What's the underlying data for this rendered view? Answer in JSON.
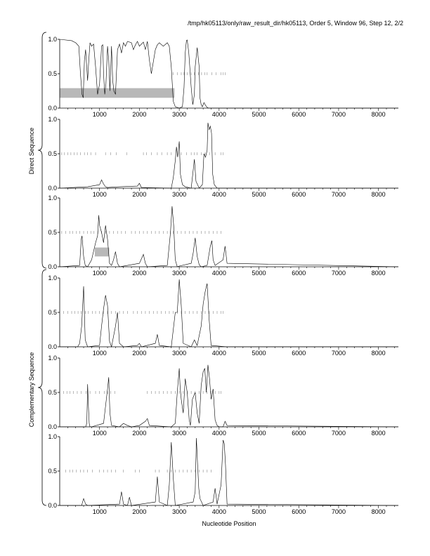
{
  "header": {
    "path_text": "/tmp/hk05113/only/raw_result_dir/hk05113, Order 5, Window 96, Step 12, 2/2"
  },
  "labels": {
    "xlabel": "Nucleotide Position",
    "direct_group": "Direct Sequence",
    "complementary_group": "Complementary Sequence"
  },
  "chart_data": [
    {
      "type": "line",
      "frame": 1,
      "group": "Direct Sequence",
      "xlim": [
        0,
        8500
      ],
      "ylim": [
        0,
        1
      ],
      "x_ticks": [
        1000,
        2000,
        3000,
        4000,
        5000,
        6000,
        7000,
        8000
      ],
      "y_ticks": [
        "0.0",
        "0.5",
        "1.0"
      ],
      "series": [
        {
          "x": [
            0,
            300,
            400,
            480,
            520,
            560,
            590,
            620,
            650,
            700,
            730,
            760,
            800,
            850,
            900,
            950,
            1000,
            1050,
            1080,
            1100,
            1130,
            1160,
            1200,
            1230,
            1260,
            1300,
            1330,
            1360,
            1400,
            1450,
            1500,
            1550,
            1600,
            1650,
            1700,
            1800,
            1850,
            1900,
            1950,
            2000,
            2050,
            2100,
            2150,
            2200,
            2250,
            2300,
            2400,
            2450,
            2500,
            2600,
            2700,
            2750,
            2800,
            2850,
            2900,
            3000,
            3080,
            3120,
            3150,
            3180,
            3200,
            3240,
            3300,
            3340,
            3380,
            3400,
            3450,
            3500,
            3520,
            3550,
            3580,
            3620,
            3660,
            3700,
            3740,
            3780,
            3900,
            4200,
            8500
          ],
          "y": [
            1.0,
            0.98,
            0.95,
            0.9,
            0.5,
            0.2,
            0.15,
            0.7,
            0.85,
            0.4,
            0.7,
            0.95,
            0.9,
            0.93,
            0.6,
            0.2,
            0.35,
            0.9,
            0.92,
            0.5,
            0.2,
            0.35,
            0.9,
            0.7,
            0.25,
            0.9,
            0.4,
            0.25,
            0.2,
            0.85,
            0.93,
            0.8,
            0.95,
            0.9,
            0.97,
            0.95,
            0.85,
            0.92,
            0.97,
            0.9,
            0.93,
            0.96,
            0.85,
            0.97,
            0.7,
            0.5,
            0.85,
            0.92,
            0.95,
            0.9,
            0.95,
            0.9,
            0.6,
            0.1,
            0.02,
            0.0,
            0.02,
            0.3,
            0.8,
            0.98,
            0.99,
            0.8,
            0.3,
            0.05,
            0.2,
            0.6,
            0.88,
            0.6,
            0.15,
            0.05,
            0.02,
            0.08,
            0.04,
            0.01,
            0.0,
            0.0,
            0.0,
            0.0,
            0.0
          ]
        }
      ],
      "hits": [
        2850,
        2950,
        3050,
        3120,
        3200,
        3300,
        3380,
        3480,
        3560,
        3640,
        3700,
        3820,
        3920,
        4050,
        4100,
        4150
      ],
      "highlight": {
        "x_range": [
          0,
          2880
        ],
        "y_range": [
          0.15,
          0.29
        ]
      }
    },
    {
      "type": "line",
      "frame": 2,
      "group": "Direct Sequence",
      "xlim": [
        0,
        8500
      ],
      "ylim": [
        0,
        1
      ],
      "x_ticks": [
        1000,
        2000,
        3000,
        4000,
        5000,
        6000,
        7000,
        8000
      ],
      "y_ticks": [
        "0.0",
        "0.5",
        "1.0"
      ],
      "series": [
        {
          "x": [
            0,
            700,
            1000,
            1050,
            1100,
            1150,
            1200,
            1500,
            1950,
            2000,
            2050,
            2800,
            2850,
            2900,
            2930,
            2960,
            3000,
            3030,
            3080,
            3150,
            3300,
            3380,
            3420,
            3500,
            3580,
            3620,
            3660,
            3700,
            3720,
            3750,
            3780,
            3810,
            3840,
            3880,
            3950,
            8500
          ],
          "y": [
            0.0,
            0.02,
            0.05,
            0.12,
            0.06,
            0.02,
            0.01,
            0.02,
            0.03,
            0.07,
            0.01,
            0.0,
            0.15,
            0.4,
            0.6,
            0.45,
            0.68,
            0.2,
            0.05,
            0.02,
            0.0,
            0.42,
            0.1,
            0.0,
            0.05,
            0.5,
            0.45,
            0.55,
            0.95,
            0.85,
            0.9,
            0.8,
            0.2,
            0.05,
            0.0,
            0.0
          ]
        }
      ],
      "hits": [
        50,
        120,
        200,
        280,
        360,
        440,
        520,
        620,
        700,
        780,
        900,
        1150,
        1280,
        1420,
        1680,
        2100,
        2180,
        2300,
        2450,
        2560,
        2700,
        2800,
        3050,
        3180,
        3300,
        3380,
        3450,
        3550,
        3650,
        3760,
        3900,
        4050,
        4100
      ]
    },
    {
      "type": "line",
      "frame": 3,
      "group": "Direct Sequence",
      "xlim": [
        0,
        8500
      ],
      "ylim": [
        0,
        1
      ],
      "x_ticks": [
        1000,
        2000,
        3000,
        4000,
        5000,
        6000,
        7000,
        8000
      ],
      "y_ticks": [
        "0.0",
        "0.5",
        "1.0"
      ],
      "series": [
        {
          "x": [
            0,
            500,
            540,
            560,
            600,
            640,
            700,
            800,
            900,
            950,
            980,
            1000,
            1050,
            1100,
            1150,
            1200,
            1250,
            1300,
            1350,
            1400,
            1450,
            1500,
            2000,
            2100,
            2150,
            2200,
            2700,
            2780,
            2820,
            2860,
            2900,
            2950,
            3000,
            3300,
            3350,
            3400,
            3450,
            3500,
            3550,
            3700,
            3780,
            3820,
            3850,
            3900,
            4100,
            4150,
            4200,
            8500
          ],
          "y": [
            0.0,
            0.02,
            0.4,
            0.45,
            0.15,
            0.02,
            0.0,
            0.1,
            0.35,
            0.45,
            0.75,
            0.6,
            0.5,
            0.35,
            0.6,
            0.4,
            0.05,
            0.02,
            0.1,
            0.22,
            0.05,
            0.0,
            0.05,
            0.18,
            0.05,
            0.0,
            0.02,
            0.5,
            0.88,
            0.6,
            0.1,
            0.0,
            0.01,
            0.05,
            0.2,
            0.42,
            0.15,
            0.03,
            0.0,
            0.02,
            0.3,
            0.38,
            0.1,
            0.02,
            0.1,
            0.3,
            0.05,
            0.0
          ]
        }
      ],
      "hits": [
        50,
        150,
        250,
        330,
        420,
        500,
        600,
        700,
        780,
        860,
        960,
        1050,
        1150,
        1250,
        1350,
        1450,
        1550,
        1650,
        1800,
        1900,
        2000,
        2100,
        2200,
        2300,
        2400,
        2500,
        2600,
        2700,
        2780,
        2850,
        2950,
        3050,
        3150,
        3250,
        3350,
        3450,
        3550,
        3650,
        3750,
        3850,
        3950,
        4050
      ],
      "highlight": {
        "x_range": [
          880,
          1240
        ],
        "y_range": [
          0.15,
          0.28
        ]
      }
    },
    {
      "type": "line",
      "frame": 4,
      "group": "Complementary Sequence",
      "xlim": [
        0,
        8500
      ],
      "ylim": [
        0,
        1
      ],
      "x_ticks": [
        1000,
        2000,
        3000,
        4000,
        5000,
        6000,
        7000,
        8000
      ],
      "y_ticks": [
        "0.0",
        "0.5",
        "1.0"
      ],
      "series": [
        {
          "x": [
            0,
            450,
            500,
            550,
            600,
            640,
            700,
            1000,
            1050,
            1100,
            1150,
            1200,
            1250,
            1300,
            1400,
            1450,
            1500,
            1600,
            1950,
            2000,
            2050,
            2400,
            2450,
            2500,
            2800,
            2900,
            2950,
            3000,
            3050,
            3100,
            3300,
            3380,
            3450,
            3550,
            3600,
            3650,
            3700,
            3750,
            3800,
            4200,
            8500
          ],
          "y": [
            0.0,
            0.0,
            0.05,
            0.3,
            0.88,
            0.1,
            0.0,
            0.02,
            0.3,
            0.55,
            0.75,
            0.6,
            0.08,
            0.0,
            0.3,
            0.5,
            0.05,
            0.0,
            0.02,
            0.05,
            0.0,
            0.05,
            0.18,
            0.02,
            0.0,
            0.5,
            0.5,
            0.98,
            0.6,
            0.05,
            0.0,
            0.1,
            0.02,
            0.3,
            0.62,
            0.8,
            0.92,
            0.4,
            0.02,
            0.0,
            0.0
          ]
        }
      ],
      "hits": [
        100,
        200,
        300,
        380,
        460,
        540,
        640,
        720,
        820,
        900,
        1000,
        1100,
        1200,
        1300,
        1400,
        1500,
        1600,
        1700,
        1850,
        1950,
        2050,
        2150,
        2250,
        2350,
        2450,
        2550,
        2650,
        2750,
        2850,
        2950,
        3050,
        3150,
        3250,
        3350,
        3450,
        3550,
        3650,
        3750,
        3850,
        3950,
        4050,
        4100
      ]
    },
    {
      "type": "line",
      "frame": 5,
      "group": "Complementary Sequence",
      "xlim": [
        0,
        8500
      ],
      "ylim": [
        0,
        1
      ],
      "x_ticks": [
        1000,
        2000,
        3000,
        4000,
        5000,
        6000,
        7000,
        8000
      ],
      "y_ticks": [
        "0.0",
        "0.5",
        "1.0"
      ],
      "series": [
        {
          "x": [
            0,
            650,
            680,
            700,
            720,
            740,
            760,
            800,
            1100,
            1150,
            1200,
            1230,
            1260,
            1300,
            1500,
            1600,
            1700,
            1800,
            2000,
            2150,
            2200,
            2250,
            2800,
            2900,
            2950,
            3000,
            3020,
            3050,
            3100,
            3150,
            3200,
            3250,
            3280,
            3330,
            3400,
            3450,
            3500,
            3550,
            3600,
            3640,
            3680,
            3720,
            3760,
            3800,
            3850,
            3900,
            3950,
            4000,
            4100,
            4150,
            4200,
            8500
          ],
          "y": [
            0.0,
            0.0,
            0.05,
            0.62,
            0.3,
            0.05,
            0.0,
            0.0,
            0.05,
            0.3,
            0.55,
            0.72,
            0.2,
            0.02,
            0.0,
            0.05,
            0.02,
            0.0,
            0.02,
            0.08,
            0.12,
            0.02,
            0.0,
            0.05,
            0.5,
            0.85,
            0.6,
            0.4,
            0.2,
            0.7,
            0.5,
            0.1,
            0.02,
            0.4,
            0.5,
            0.2,
            0.05,
            0.6,
            0.8,
            0.85,
            0.5,
            0.9,
            0.7,
            0.4,
            0.55,
            0.1,
            0.02,
            0.0,
            0.0,
            0.08,
            0.02,
            0.0
          ]
        }
      ],
      "hits": [
        100,
        180,
        260,
        340,
        440,
        540,
        660,
        760,
        900,
        1000,
        1120,
        1200,
        1280,
        1380,
        2200,
        2300,
        2400,
        2500,
        2600,
        2700,
        2800,
        2900,
        3000,
        3100,
        3200,
        3300,
        3400,
        3500,
        3600,
        3700,
        3800,
        3900,
        4000,
        4050
      ]
    },
    {
      "type": "line",
      "frame": 6,
      "group": "Complementary Sequence",
      "xlim": [
        0,
        8500
      ],
      "ylim": [
        0,
        1
      ],
      "x_ticks": [
        1000,
        2000,
        3000,
        4000,
        5000,
        6000,
        7000,
        8000
      ],
      "y_ticks": [
        "0.0",
        "0.5",
        "1.0"
      ],
      "series": [
        {
          "x": [
            0,
            550,
            600,
            650,
            700,
            1500,
            1550,
            1600,
            1700,
            1750,
            1800,
            2400,
            2450,
            2500,
            2700,
            2750,
            2800,
            2850,
            2900,
            3350,
            3400,
            3430,
            3460,
            3490,
            3520,
            3600,
            3850,
            3900,
            3950,
            4050,
            4100,
            4130,
            4160,
            4200,
            8500
          ],
          "y": [
            0.0,
            0.0,
            0.1,
            0.02,
            0.0,
            0.02,
            0.2,
            0.02,
            0.0,
            0.12,
            0.0,
            0.05,
            0.42,
            0.05,
            0.0,
            0.3,
            0.92,
            0.4,
            0.0,
            0.05,
            0.2,
            0.98,
            0.6,
            0.25,
            0.1,
            0.0,
            0.05,
            0.25,
            0.02,
            0.3,
            0.95,
            0.9,
            0.6,
            0.02,
            0.0
          ]
        }
      ],
      "hits": [
        150,
        250,
        330,
        420,
        520,
        600,
        700,
        820,
        1000,
        1100,
        1200,
        1300,
        1400,
        1600,
        1900,
        2000,
        2400,
        2500,
        2700,
        2800,
        2900,
        3000,
        3100,
        3200,
        3300,
        3400,
        3500,
        3600,
        3700,
        3800
      ]
    }
  ]
}
